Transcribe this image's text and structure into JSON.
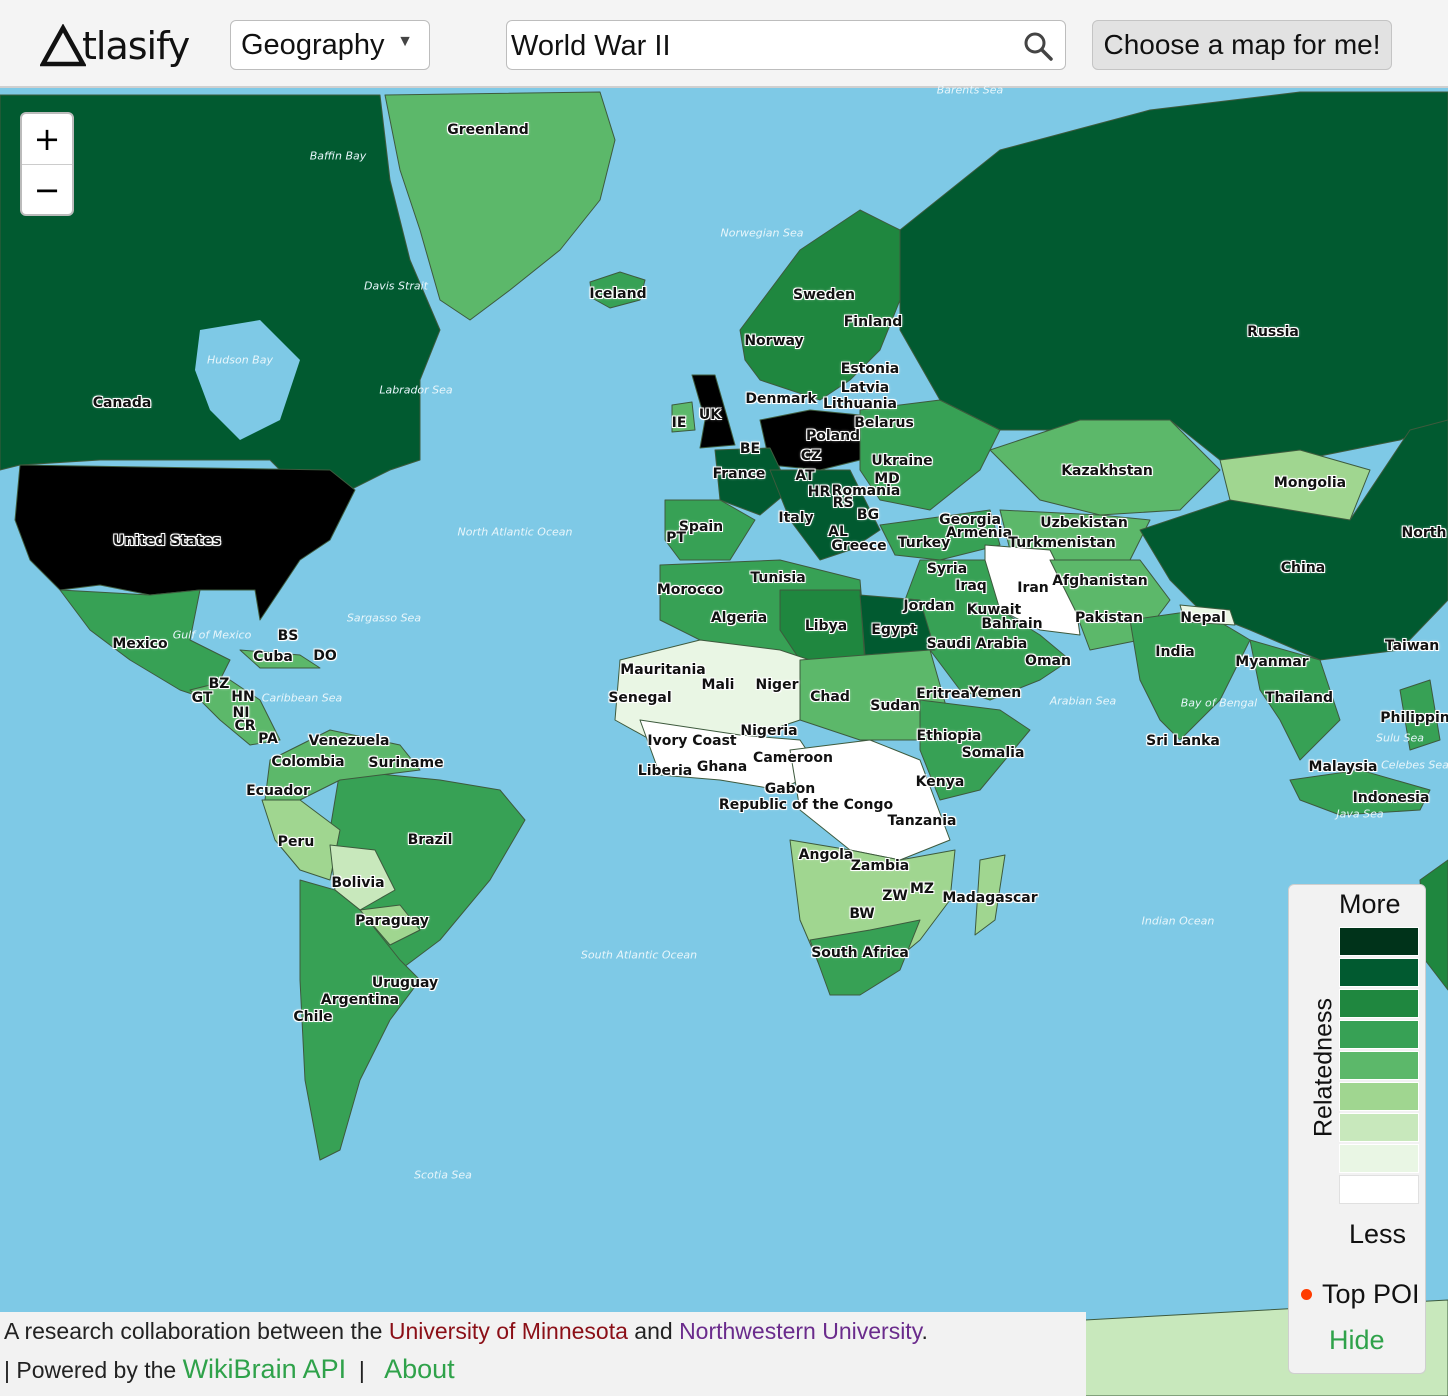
{
  "header": {
    "logo_text": "tlasify",
    "category_select": "Geography",
    "search_value": "World War II",
    "choose_button": "Choose a map for me!"
  },
  "zoom": {
    "in": "+",
    "out": "−"
  },
  "legend": {
    "top_label": "More",
    "bottom_label": "Less",
    "axis_label": "Relatedness",
    "colors": [
      "#00331a",
      "#015a30",
      "#1f873f",
      "#37a155",
      "#5cb86a",
      "#a0d690",
      "#c8e8bc",
      "#e9f6e4",
      "#ffffff"
    ],
    "poi_label": "Top POI",
    "hide_label": "Hide"
  },
  "footer": {
    "line1_prefix": "A research collaboration between the",
    "umn": "University of Minnesota",
    "and": "and",
    "northwestern": "Northwestern University",
    "period": ".",
    "line2_prefix": "| Powered by the",
    "wikibrain": "WikiBrain API",
    "separator": "|",
    "about": "About"
  },
  "countries": [
    {
      "name": "Greenland",
      "level": 4
    },
    {
      "name": "Iceland",
      "level": 2
    },
    {
      "name": "Canada",
      "level": 1
    },
    {
      "name": "United States",
      "level": 0
    },
    {
      "name": "Mexico",
      "level": 3
    },
    {
      "name": "BS",
      "level": 5
    },
    {
      "name": "Cuba",
      "level": 4
    },
    {
      "name": "DO",
      "level": 4
    },
    {
      "name": "BZ",
      "level": 4
    },
    {
      "name": "GT",
      "level": 4
    },
    {
      "name": "HN",
      "level": 4
    },
    {
      "name": "NI",
      "level": 4
    },
    {
      "name": "CR",
      "level": 4
    },
    {
      "name": "PA",
      "level": 3
    },
    {
      "name": "Venezuela",
      "level": 4
    },
    {
      "name": "Colombia",
      "level": 4
    },
    {
      "name": "Suriname",
      "level": 4
    },
    {
      "name": "Ecuador",
      "level": 4
    },
    {
      "name": "Peru",
      "level": 4
    },
    {
      "name": "Brazil",
      "level": 3
    },
    {
      "name": "Bolivia",
      "level": 6
    },
    {
      "name": "Paraguay",
      "level": 5
    },
    {
      "name": "Uruguay",
      "level": 3
    },
    {
      "name": "Argentina",
      "level": 3
    },
    {
      "name": "Chile",
      "level": 3
    },
    {
      "name": "Russia",
      "level": 1
    },
    {
      "name": "Sweden",
      "level": 2
    },
    {
      "name": "Finland",
      "level": 2
    },
    {
      "name": "Norway",
      "level": 2
    },
    {
      "name": "Estonia",
      "level": 3
    },
    {
      "name": "Latvia",
      "level": 3
    },
    {
      "name": "Lithuania",
      "level": 3
    },
    {
      "name": "Denmark",
      "level": 2
    },
    {
      "name": "UK",
      "level": 0
    },
    {
      "name": "IE",
      "level": 4
    },
    {
      "name": "Poland",
      "level": 0
    },
    {
      "name": "Belarus",
      "level": 2
    },
    {
      "name": "BE",
      "level": 2
    },
    {
      "name": "CZ",
      "level": 2
    },
    {
      "name": "France",
      "level": 1
    },
    {
      "name": "AT",
      "level": 1
    },
    {
      "name": "Ukraine",
      "level": 3
    },
    {
      "name": "MD",
      "level": 3
    },
    {
      "name": "HR",
      "level": 3
    },
    {
      "name": "RS",
      "level": 3
    },
    {
      "name": "Romania",
      "level": 3
    },
    {
      "name": "BG",
      "level": 3
    },
    {
      "name": "Italy",
      "level": 0
    },
    {
      "name": "AL",
      "level": 4
    },
    {
      "name": "Greece",
      "level": 2
    },
    {
      "name": "Spain",
      "level": 3
    },
    {
      "name": "PT",
      "level": 3
    },
    {
      "name": "Georgia",
      "level": 3
    },
    {
      "name": "Armenia",
      "level": 3
    },
    {
      "name": "Turkey",
      "level": 3
    },
    {
      "name": "Kazakhstan",
      "level": 4
    },
    {
      "name": "Mongolia",
      "level": 5
    },
    {
      "name": "Uzbekistan",
      "level": 4
    },
    {
      "name": "Turkmenistan",
      "level": 4
    },
    {
      "name": "China",
      "level": 1
    },
    {
      "name": "North",
      "level": 1
    },
    {
      "name": "Taiwan",
      "level": 2
    },
    {
      "name": "Morocco",
      "level": 3
    },
    {
      "name": "Algeria",
      "level": 3
    },
    {
      "name": "Tunisia",
      "level": 3
    },
    {
      "name": "Libya",
      "level": 2
    },
    {
      "name": "Egypt",
      "level": 1
    },
    {
      "name": "Syria",
      "level": 3
    },
    {
      "name": "Iraq",
      "level": 3
    },
    {
      "name": "Iran",
      "level": 8
    },
    {
      "name": "Afghanistan",
      "level": 4
    },
    {
      "name": "Jordan",
      "level": 3
    },
    {
      "name": "Kuwait",
      "level": 3
    },
    {
      "name": "Bahrain",
      "level": 3
    },
    {
      "name": "Pakistan",
      "level": 4
    },
    {
      "name": "Saudi Arabia",
      "level": 3
    },
    {
      "name": "Oman",
      "level": 3
    },
    {
      "name": "Nepal",
      "level": 7
    },
    {
      "name": "India",
      "level": 3
    },
    {
      "name": "Myanmar",
      "level": 3
    },
    {
      "name": "Thailand",
      "level": 3
    },
    {
      "name": "Sri Lanka",
      "level": 4
    },
    {
      "name": "Malaysia",
      "level": 3
    },
    {
      "name": "Indonesia",
      "level": 3
    },
    {
      "name": "Philippin",
      "level": 3
    },
    {
      "name": "Mauritania",
      "level": 6
    },
    {
      "name": "Mali",
      "level": 7
    },
    {
      "name": "Niger",
      "level": 6
    },
    {
      "name": "Chad",
      "level": 4
    },
    {
      "name": "Sudan",
      "level": 3
    },
    {
      "name": "Eritrea",
      "level": 3
    },
    {
      "name": "Yemen",
      "level": 4
    },
    {
      "name": "Senegal",
      "level": 6
    },
    {
      "name": "Nigeria",
      "level": 6
    },
    {
      "name": "Ethiopia",
      "level": 3
    },
    {
      "name": "Ivory Coast",
      "level": 7
    },
    {
      "name": "Liberia",
      "level": 7
    },
    {
      "name": "Ghana",
      "level": 6
    },
    {
      "name": "Cameroon",
      "level": 7
    },
    {
      "name": "Somalia",
      "level": 3
    },
    {
      "name": "Kenya",
      "level": 4
    },
    {
      "name": "Gabon",
      "level": 7
    },
    {
      "name": "Republic of the Congo",
      "level": 7
    },
    {
      "name": "Tanzania",
      "level": 7
    },
    {
      "name": "Angola",
      "level": 4
    },
    {
      "name": "Zambia",
      "level": 6
    },
    {
      "name": "ZW",
      "level": 5
    },
    {
      "name": "MZ",
      "level": 4
    },
    {
      "name": "BW",
      "level": 6
    },
    {
      "name": "Madagascar",
      "level": 5
    },
    {
      "name": "South Africa",
      "level": 3
    }
  ],
  "seas": [
    "Baffin Bay",
    "Norwegian Sea",
    "Davis Strait",
    "Hudson Bay",
    "Labrador Sea",
    "North Atlantic Ocean",
    "Sargasso Sea",
    "Gulf of Mexico",
    "Caribbean Sea",
    "South Atlantic Ocean",
    "Scotia Sea",
    "Arabian Sea",
    "Bay of Bengal",
    "Indian Ocean",
    "Sulu Sea",
    "Celebes Sea",
    "Java Sea",
    "Barents Sea"
  ]
}
